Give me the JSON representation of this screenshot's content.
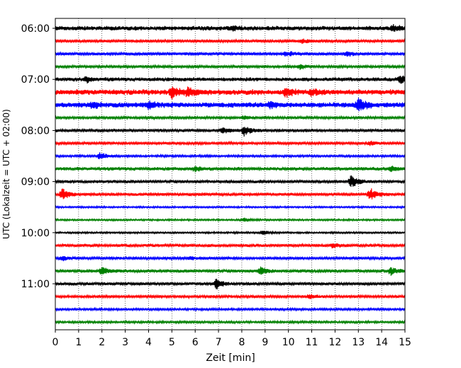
{
  "chart_data": {
    "type": "line",
    "subtype": "helicorder",
    "xlabel": "Zeit  [min]",
    "ylabel": "UTC (Lokalzeit = UTC + 02:00)",
    "xlim": [
      0,
      15
    ],
    "xticks": [
      "0",
      "1",
      "2",
      "3",
      "4",
      "5",
      "6",
      "7",
      "8",
      "9",
      "10",
      "11",
      "12",
      "13",
      "14",
      "15"
    ],
    "row_interval_min": 15,
    "rows_start_utc": "06:00",
    "ytick_labels": [
      "06:00",
      "07:00",
      "08:00",
      "09:00",
      "10:00",
      "11:00"
    ],
    "grid": "vertical dotted at each minute",
    "colors_cycle": [
      "#000000",
      "#ff0000",
      "#0000ff",
      "#008000"
    ],
    "rows": [
      {
        "start": "06:00",
        "color": "#000000",
        "noise": 0.5,
        "events": [
          {
            "t": 7.6,
            "amp": 0.6
          },
          {
            "t": 14.5,
            "amp": 0.6
          }
        ]
      },
      {
        "start": "06:15",
        "color": "#ff0000",
        "noise": 0.3,
        "events": [
          {
            "t": 10.6,
            "amp": 0.5
          }
        ]
      },
      {
        "start": "06:30",
        "color": "#0000ff",
        "noise": 0.35,
        "events": [
          {
            "t": 9.9,
            "amp": 0.6
          },
          {
            "t": 12.5,
            "amp": 0.5
          }
        ]
      },
      {
        "start": "06:45",
        "color": "#008000",
        "noise": 0.3,
        "events": [
          {
            "t": 10.5,
            "amp": 0.5
          }
        ]
      },
      {
        "start": "07:00",
        "color": "#000000",
        "noise": 0.45,
        "events": [
          {
            "t": 1.3,
            "amp": 0.6
          },
          {
            "t": 14.8,
            "amp": 0.9
          }
        ]
      },
      {
        "start": "07:15",
        "color": "#ff0000",
        "noise": 0.6,
        "events": [
          {
            "t": 5.0,
            "amp": 1.5
          },
          {
            "t": 5.7,
            "amp": 1.0
          },
          {
            "t": 9.9,
            "amp": 1.0
          },
          {
            "t": 11.0,
            "amp": 0.7
          }
        ]
      },
      {
        "start": "07:30",
        "color": "#0000ff",
        "noise": 0.6,
        "events": [
          {
            "t": 1.6,
            "amp": 0.7
          },
          {
            "t": 4.0,
            "amp": 0.7
          },
          {
            "t": 9.2,
            "amp": 0.7
          },
          {
            "t": 13.0,
            "amp": 1.6
          }
        ]
      },
      {
        "start": "07:45",
        "color": "#008000",
        "noise": 0.3,
        "events": [
          {
            "t": 8.1,
            "amp": 0.4
          }
        ]
      },
      {
        "start": "08:00",
        "color": "#000000",
        "noise": 0.35,
        "events": [
          {
            "t": 7.2,
            "amp": 0.6
          },
          {
            "t": 8.1,
            "amp": 1.2
          }
        ]
      },
      {
        "start": "08:15",
        "color": "#ff0000",
        "noise": 0.3,
        "events": [
          {
            "t": 13.5,
            "amp": 0.4
          }
        ]
      },
      {
        "start": "08:30",
        "color": "#0000ff",
        "noise": 0.25,
        "events": [
          {
            "t": 1.9,
            "amp": 0.9
          }
        ]
      },
      {
        "start": "08:45",
        "color": "#008000",
        "noise": 0.4,
        "events": [
          {
            "t": 6.0,
            "amp": 0.6
          },
          {
            "t": 14.4,
            "amp": 0.5
          }
        ]
      },
      {
        "start": "09:00",
        "color": "#000000",
        "noise": 0.35,
        "events": [
          {
            "t": 12.7,
            "amp": 1.4
          }
        ]
      },
      {
        "start": "09:15",
        "color": "#ff0000",
        "noise": 0.35,
        "events": [
          {
            "t": 0.3,
            "amp": 1.2
          },
          {
            "t": 13.5,
            "amp": 1.4
          }
        ]
      },
      {
        "start": "09:30",
        "color": "#0000ff",
        "noise": 0.2,
        "events": []
      },
      {
        "start": "09:45",
        "color": "#008000",
        "noise": 0.2,
        "events": [
          {
            "t": 8.1,
            "amp": 0.4
          }
        ]
      },
      {
        "start": "10:00",
        "color": "#000000",
        "noise": 0.2,
        "events": [
          {
            "t": 8.9,
            "amp": 0.5
          }
        ]
      },
      {
        "start": "10:15",
        "color": "#ff0000",
        "noise": 0.35,
        "events": [
          {
            "t": 11.9,
            "amp": 0.5
          }
        ]
      },
      {
        "start": "10:30",
        "color": "#0000ff",
        "noise": 0.3,
        "events": [
          {
            "t": 0.3,
            "amp": 0.5
          },
          {
            "t": 5.8,
            "amp": 0.4
          }
        ]
      },
      {
        "start": "10:45",
        "color": "#008000",
        "noise": 0.35,
        "events": [
          {
            "t": 2.0,
            "amp": 0.9
          },
          {
            "t": 8.8,
            "amp": 0.9
          },
          {
            "t": 14.4,
            "amp": 0.8
          }
        ]
      },
      {
        "start": "11:00",
        "color": "#000000",
        "noise": 0.35,
        "events": [
          {
            "t": 6.9,
            "amp": 1.1
          }
        ]
      },
      {
        "start": "11:15",
        "color": "#ff0000",
        "noise": 0.3,
        "events": [
          {
            "t": 10.9,
            "amp": 0.6
          }
        ]
      },
      {
        "start": "11:30",
        "color": "#0000ff",
        "noise": 0.25,
        "events": []
      },
      {
        "start": "11:45",
        "color": "#008000",
        "noise": 0.25,
        "events": []
      }
    ]
  }
}
